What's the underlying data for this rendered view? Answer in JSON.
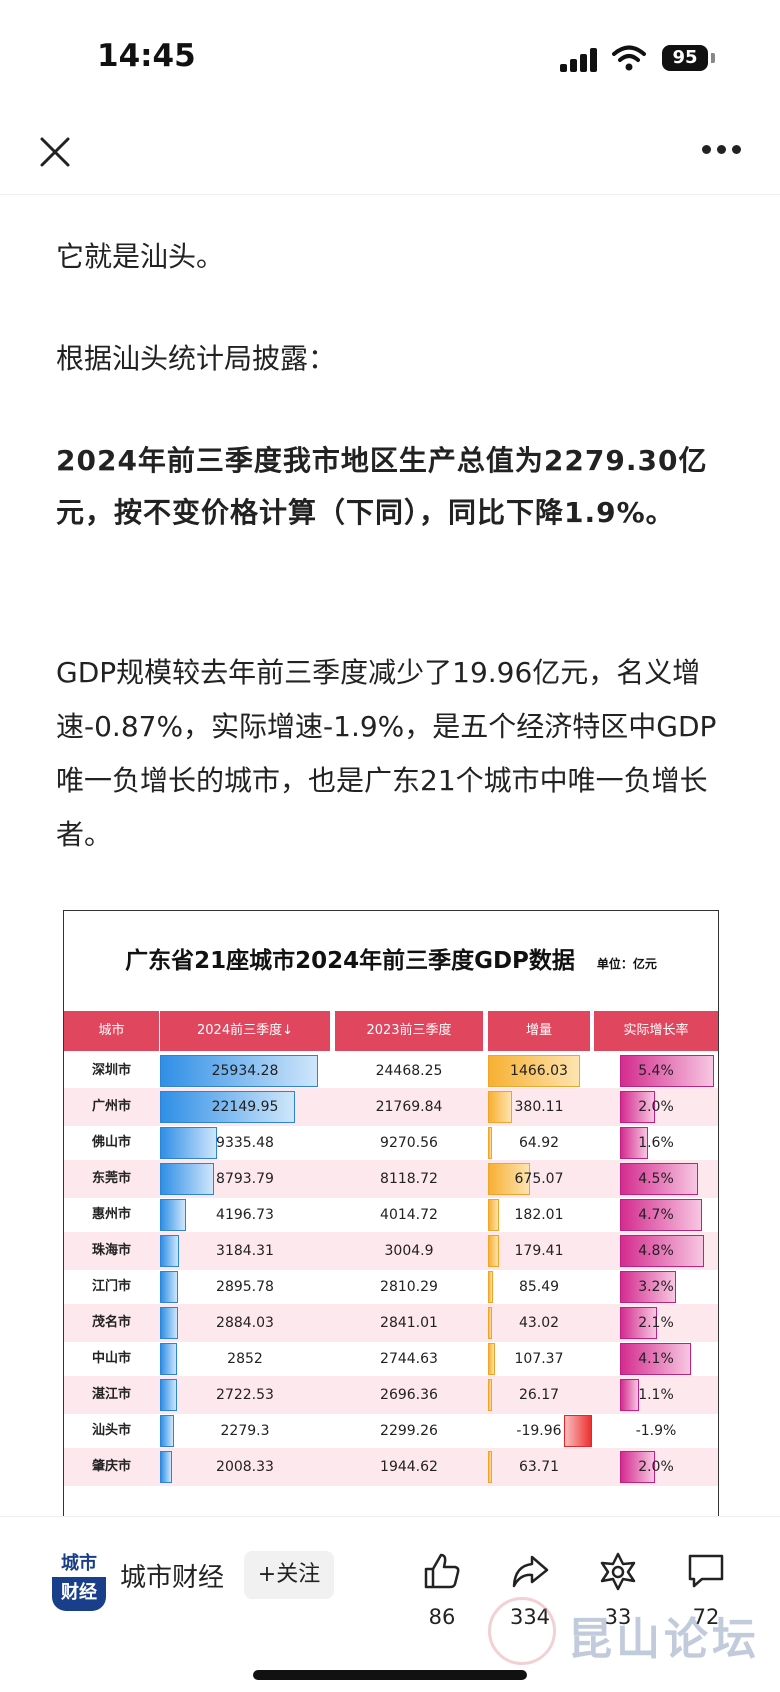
{
  "status_bar": {
    "time": "14:45",
    "battery": "95"
  },
  "article": {
    "p1": "它就是汕头。",
    "p2": "根据汕头统计局披露：",
    "p3": "2024年前三季度我市地区生产总值为2279.30亿元，按不变价格计算（下同），同比下降1.9%。",
    "p4": "GDP规模较去年前三季度减少了19.96亿元，名义增速-0.87%，实际增速-1.9%，是五个经济特区中GDP唯一负增长的城市，也是广东21个城市中唯一负增长者。"
  },
  "chart_data": {
    "type": "table",
    "title": "广东省21座城市2024年前三季度GDP数据",
    "unit": "单位：亿元",
    "columns": [
      "城市",
      "2024前三季度↓",
      "2023前三季度",
      "增量",
      "实际增长率"
    ],
    "rows": [
      {
        "city": "深圳市",
        "gdp2024": "25934.28",
        "gdp2023": "24468.25",
        "inc": "1466.03",
        "rate": "5.4%"
      },
      {
        "city": "广州市",
        "gdp2024": "22149.95",
        "gdp2023": "21769.84",
        "inc": "380.11",
        "rate": "2.0%"
      },
      {
        "city": "佛山市",
        "gdp2024": "9335.48",
        "gdp2023": "9270.56",
        "inc": "64.92",
        "rate": "1.6%"
      },
      {
        "city": "东莞市",
        "gdp2024": "8793.79",
        "gdp2023": "8118.72",
        "inc": "675.07",
        "rate": "4.5%"
      },
      {
        "city": "惠州市",
        "gdp2024": "4196.73",
        "gdp2023": "4014.72",
        "inc": "182.01",
        "rate": "4.7%"
      },
      {
        "city": "珠海市",
        "gdp2024": "3184.31",
        "gdp2023": "3004.9",
        "inc": "179.41",
        "rate": "4.8%"
      },
      {
        "city": "江门市",
        "gdp2024": "2895.78",
        "gdp2023": "2810.29",
        "inc": "85.49",
        "rate": "3.2%"
      },
      {
        "city": "茂名市",
        "gdp2024": "2884.03",
        "gdp2023": "2841.01",
        "inc": "43.02",
        "rate": "2.1%"
      },
      {
        "city": "中山市",
        "gdp2024": "2852",
        "gdp2023": "2744.63",
        "inc": "107.37",
        "rate": "4.1%"
      },
      {
        "city": "湛江市",
        "gdp2024": "2722.53",
        "gdp2023": "2696.36",
        "inc": "26.17",
        "rate": "1.1%"
      },
      {
        "city": "汕头市",
        "gdp2024": "2279.3",
        "gdp2023": "2299.26",
        "inc": "-19.96",
        "rate": "-1.9%"
      },
      {
        "city": "肇庆市",
        "gdp2024": "2008.33",
        "gdp2023": "1944.62",
        "inc": "63.71",
        "rate": "2.0%"
      }
    ]
  },
  "bottom_bar": {
    "logo_top": "城市",
    "logo_bottom": "财经",
    "author": "城市财经",
    "follow_label": "+关注",
    "likes": "86",
    "shares": "334",
    "favorites": "33",
    "comments": "72",
    "watermark": "昆山论坛"
  }
}
